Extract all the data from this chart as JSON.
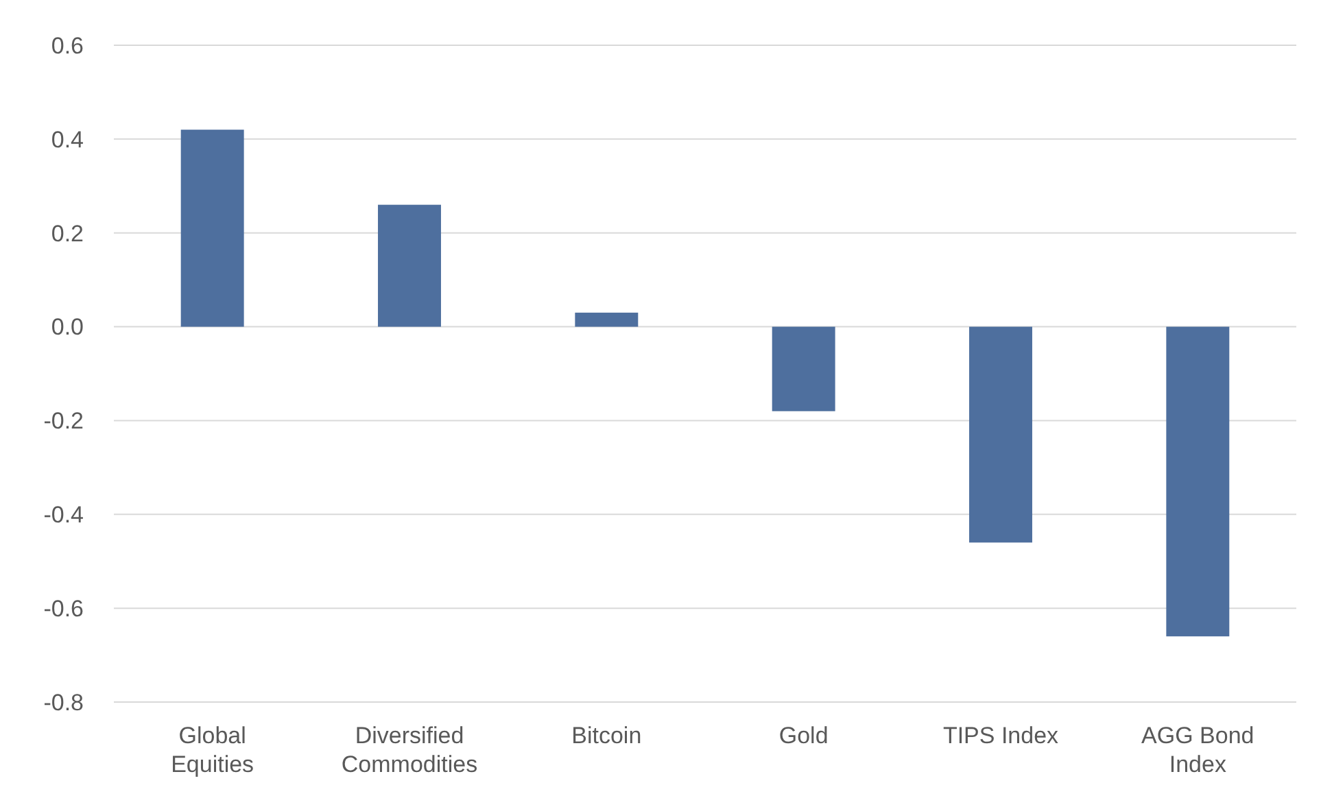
{
  "chart_data": {
    "type": "bar",
    "categories": [
      "Global Equities",
      "Diversified Commodities",
      "Bitcoin",
      "Gold",
      "TIPS Index",
      "AGG Bond Index"
    ],
    "values": [
      0.42,
      0.26,
      0.03,
      -0.18,
      -0.46,
      -0.66
    ],
    "color": "#4e6f9e",
    "ylim": [
      -0.8,
      0.6
    ],
    "yticks": [
      -0.8,
      -0.6,
      -0.4,
      -0.2,
      {
        "value": 0,
        "label": "0.0"
      },
      0.2,
      0.4,
      0.6
    ],
    "grid": "y"
  }
}
